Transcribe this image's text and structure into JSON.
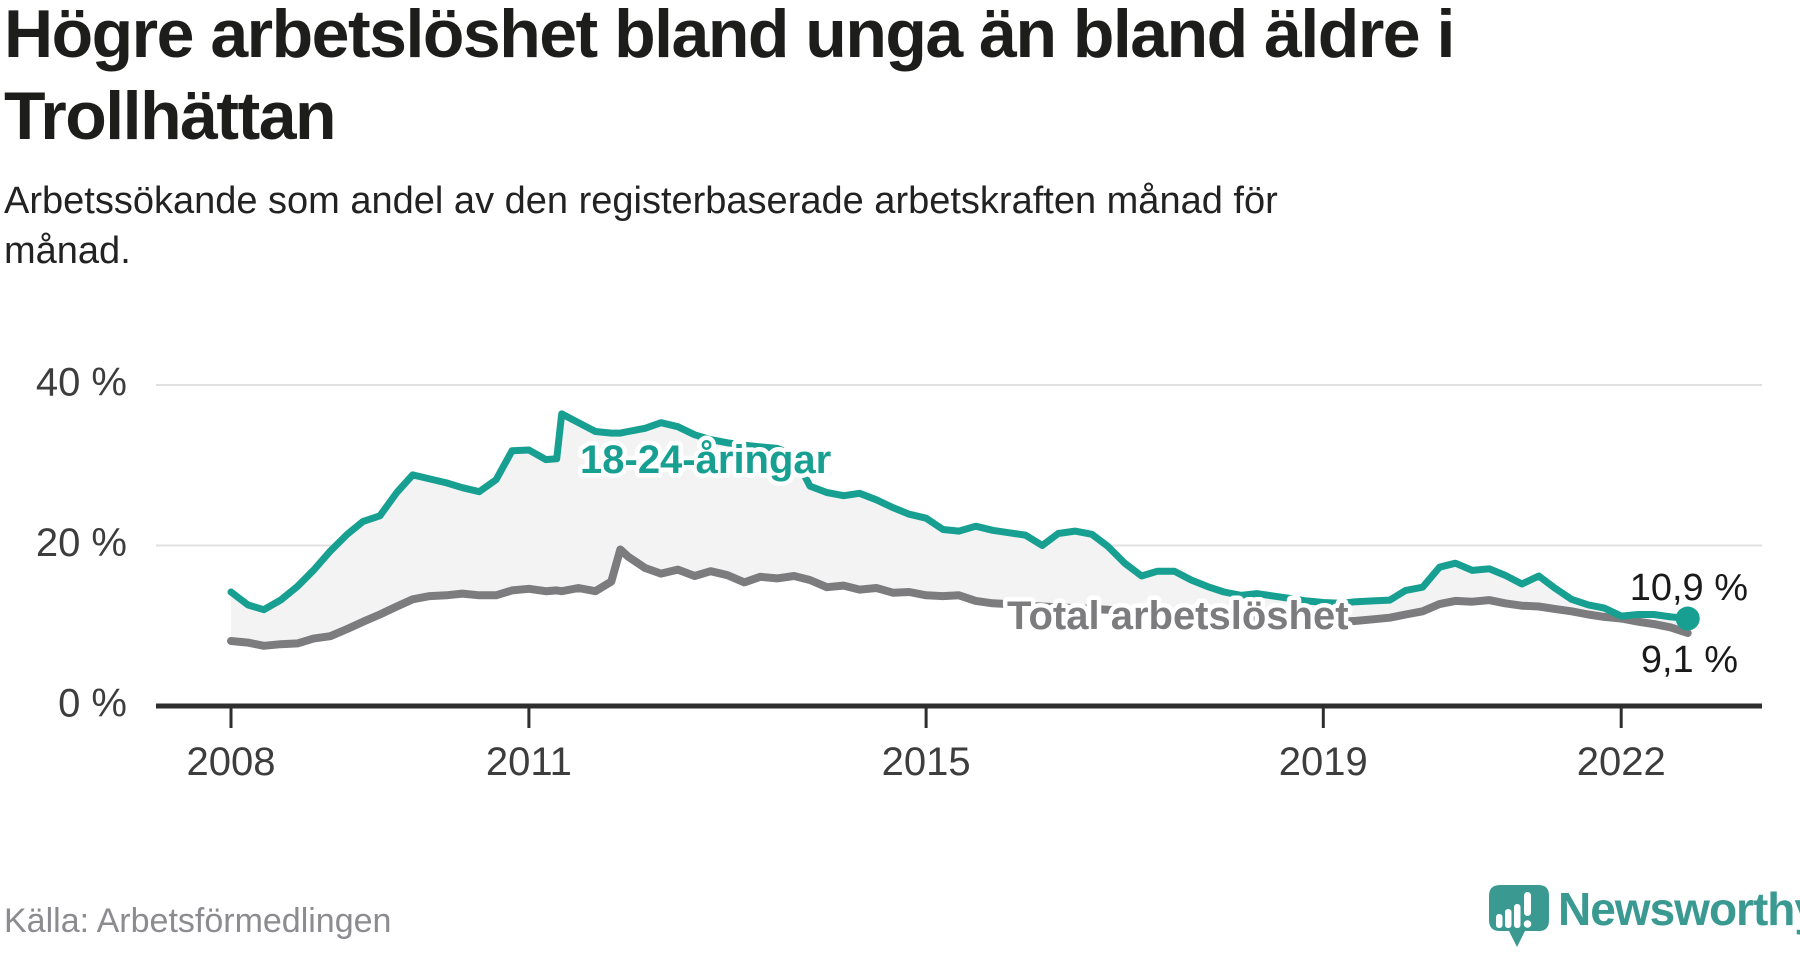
{
  "header": {
    "title": "Högre arbetslöshet bland unga än bland äldre i\nTrollhättan",
    "subtitle": "Arbetssökande som andel av den registerbaserade arbetskraften månad för\nmånad."
  },
  "chart_data": {
    "type": "line",
    "title": "Högre arbetslöshet bland unga än bland äldre i Trollhättan",
    "subtitle": "Arbetssökande som andel av den registerbaserade arbetskraften månad för månad.",
    "unit": "%",
    "grid": "horizontal",
    "legend_position": "inline-labels",
    "ylim": [
      0,
      40
    ],
    "y_ticks": [
      {
        "label": "0 %",
        "value": 0
      },
      {
        "label": "20 %",
        "value": 20
      },
      {
        "label": "40 %",
        "value": 40
      }
    ],
    "x_ticks": [
      {
        "label": "2008",
        "value": 2008
      },
      {
        "label": "2011",
        "value": 2011
      },
      {
        "label": "2015",
        "value": 2015
      },
      {
        "label": "2019",
        "value": 2019
      },
      {
        "label": "2022",
        "value": 2022
      }
    ],
    "x_range": [
      2008.0,
      2022.67
    ],
    "x": [
      2008,
      2008.17,
      2008.33,
      2008.5,
      2008.67,
      2008.83,
      2009,
      2009.17,
      2009.33,
      2009.5,
      2009.67,
      2009.83,
      2010,
      2010.17,
      2010.33,
      2010.5,
      2010.67,
      2010.83,
      2011,
      2011.17,
      2011.28,
      2011.33,
      2011.5,
      2011.67,
      2011.83,
      2011.92,
      2012,
      2012.17,
      2012.33,
      2012.5,
      2012.67,
      2012.83,
      2013,
      2013.17,
      2013.33,
      2013.5,
      2013.67,
      2013.83,
      2014,
      2014.17,
      2014.33,
      2014.5,
      2014.67,
      2014.83,
      2015,
      2015.17,
      2015.33,
      2015.5,
      2015.67,
      2015.83,
      2016,
      2016.17,
      2016.33,
      2016.5,
      2016.67,
      2016.83,
      2017,
      2017.17,
      2017.33,
      2017.5,
      2017.67,
      2017.83,
      2018,
      2018.17,
      2018.33,
      2018.5,
      2018.67,
      2018.83,
      2019,
      2019.17,
      2019.33,
      2019.5,
      2019.67,
      2019.83,
      2020,
      2020.17,
      2020.33,
      2020.5,
      2020.67,
      2020.83,
      2021,
      2021.17,
      2021.33,
      2021.5,
      2021.67,
      2021.83,
      2022,
      2022.17,
      2022.33,
      2022.5,
      2022.67
    ],
    "series": [
      {
        "name": "18-24-åringar",
        "color": "#17a091",
        "end_label": "10,9 %",
        "latest_value": 10.9,
        "values": [
          14.2,
          12.6,
          12.0,
          13.2,
          14.9,
          16.9,
          19.3,
          21.4,
          23.0,
          23.7,
          26.6,
          28.8,
          28.3,
          27.8,
          27.2,
          26.7,
          28.2,
          31.8,
          31.9,
          30.7,
          30.8,
          36.4,
          35.3,
          34.2,
          34.0,
          34.0,
          34.2,
          34.6,
          35.3,
          34.8,
          33.8,
          33.2,
          32.8,
          32.5,
          32.3,
          32.1,
          31.3,
          27.4,
          26.6,
          26.2,
          26.5,
          25.7,
          24.7,
          23.9,
          23.4,
          22.0,
          21.8,
          22.4,
          21.9,
          21.6,
          21.3,
          20.0,
          21.5,
          21.8,
          21.4,
          19.9,
          17.8,
          16.2,
          16.8,
          16.8,
          15.7,
          14.9,
          14.2,
          13.8,
          14.0,
          13.7,
          13.4,
          13.1,
          12.9,
          12.8,
          13.0,
          13.1,
          13.2,
          14.4,
          14.8,
          17.3,
          17.8,
          16.9,
          17.1,
          16.3,
          15.2,
          16.2,
          14.7,
          13.3,
          12.6,
          12.2,
          11.2,
          11.4,
          11.4,
          11.1,
          10.9
        ]
      },
      {
        "name": "Total arbetslöshet",
        "color": "#7c7c7e",
        "end_label": "9,1 %",
        "latest_value": 9.1,
        "values": [
          8.1,
          7.9,
          7.5,
          7.7,
          7.8,
          8.4,
          8.7,
          9.6,
          10.5,
          11.4,
          12.4,
          13.3,
          13.7,
          13.8,
          14.0,
          13.8,
          13.8,
          14.4,
          14.6,
          14.3,
          14.4,
          14.3,
          14.7,
          14.3,
          15.5,
          19.5,
          18.6,
          17.2,
          16.5,
          17.0,
          16.2,
          16.8,
          16.3,
          15.4,
          16.1,
          15.9,
          16.2,
          15.7,
          14.8,
          15.0,
          14.5,
          14.7,
          14.1,
          14.2,
          13.8,
          13.7,
          13.8,
          13.1,
          12.8,
          12.7,
          12.5,
          12.4,
          12.3,
          12.2,
          12.1,
          12.0,
          11.8,
          11.7,
          11.5,
          11.4,
          11.2,
          11.1,
          11.0,
          10.9,
          10.8,
          10.7,
          10.6,
          10.6,
          10.5,
          10.5,
          10.6,
          10.8,
          11.0,
          11.4,
          11.8,
          12.7,
          13.1,
          13.0,
          13.2,
          12.8,
          12.5,
          12.4,
          12.1,
          11.8,
          11.4,
          11.1,
          10.9,
          10.5,
          10.2,
          9.8,
          9.1
        ]
      }
    ],
    "colors": {
      "band_fill": "#f3f3f4",
      "gridline": "#e0e0e0",
      "axis": "#2e2e2e"
    },
    "source": "Källa: Arbetsförmedlingen"
  },
  "footer": {
    "source": "Källa: Arbetsförmedlingen",
    "brand": "Newsworthy",
    "logo_icon": "bar-chart-exclamation-speech-bubble",
    "brand_color": "#3a9a92"
  }
}
